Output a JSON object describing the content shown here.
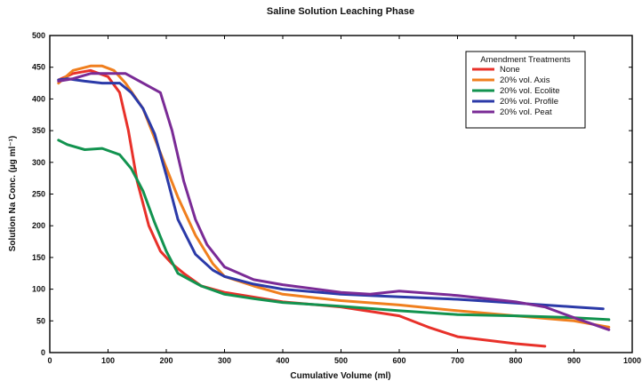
{
  "chart_data": {
    "type": "line",
    "title": "Saline Solution Leaching Phase",
    "xlabel": "Cumulative Volume (ml)",
    "ylabel": "Solution Na Conc. (µg ml⁻¹)",
    "xlim": [
      0,
      1000
    ],
    "ylim": [
      0,
      500
    ],
    "xticks": [
      0,
      100,
      200,
      300,
      400,
      500,
      600,
      700,
      800,
      900,
      1000
    ],
    "yticks": [
      0,
      50,
      100,
      150,
      200,
      250,
      300,
      350,
      400,
      450,
      500
    ],
    "grid": false,
    "legend": {
      "title": "Amendment Treatments",
      "position": "top-right"
    },
    "series": [
      {
        "name": "None",
        "color": "#e8312a",
        "x": [
          15,
          40,
          70,
          100,
          120,
          135,
          150,
          170,
          190,
          210,
          230,
          260,
          300,
          400,
          500,
          600,
          650,
          700,
          800,
          850
        ],
        "y": [
          430,
          440,
          445,
          435,
          410,
          350,
          270,
          200,
          160,
          140,
          125,
          105,
          95,
          80,
          72,
          58,
          40,
          25,
          14,
          10
        ]
      },
      {
        "name": "20% vol. Axis",
        "color": "#f07f1e",
        "x": [
          15,
          40,
          70,
          90,
          110,
          130,
          160,
          190,
          220,
          250,
          280,
          300,
          350,
          400,
          500,
          600,
          700,
          800,
          900,
          960
        ],
        "y": [
          425,
          445,
          452,
          452,
          445,
          425,
          385,
          315,
          245,
          185,
          140,
          120,
          105,
          92,
          82,
          75,
          66,
          58,
          50,
          40
        ]
      },
      {
        "name": "20% vol. Ecolite",
        "color": "#12934f",
        "x": [
          15,
          30,
          60,
          90,
          120,
          140,
          160,
          180,
          200,
          220,
          260,
          300,
          350,
          400,
          500,
          600,
          700,
          800,
          900,
          960
        ],
        "y": [
          335,
          328,
          320,
          322,
          312,
          290,
          255,
          205,
          160,
          125,
          105,
          92,
          85,
          79,
          73,
          66,
          60,
          58,
          55,
          52
        ]
      },
      {
        "name": "20% vol. Profile",
        "color": "#2b3aa8",
        "x": [
          15,
          30,
          60,
          90,
          120,
          140,
          160,
          180,
          200,
          220,
          250,
          280,
          300,
          350,
          400,
          500,
          600,
          700,
          800,
          900,
          950
        ],
        "y": [
          430,
          432,
          428,
          425,
          425,
          410,
          385,
          345,
          280,
          210,
          155,
          130,
          120,
          108,
          100,
          92,
          88,
          84,
          78,
          72,
          69
        ]
      },
      {
        "name": "20% vol. Peat",
        "color": "#7a2b96",
        "x": [
          15,
          40,
          70,
          100,
          130,
          160,
          190,
          210,
          230,
          250,
          270,
          300,
          350,
          400,
          500,
          550,
          600,
          700,
          800,
          850,
          900,
          960
        ],
        "y": [
          428,
          432,
          440,
          440,
          440,
          425,
          410,
          350,
          270,
          210,
          170,
          135,
          115,
          107,
          95,
          92,
          97,
          90,
          80,
          72,
          55,
          36
        ]
      }
    ]
  }
}
